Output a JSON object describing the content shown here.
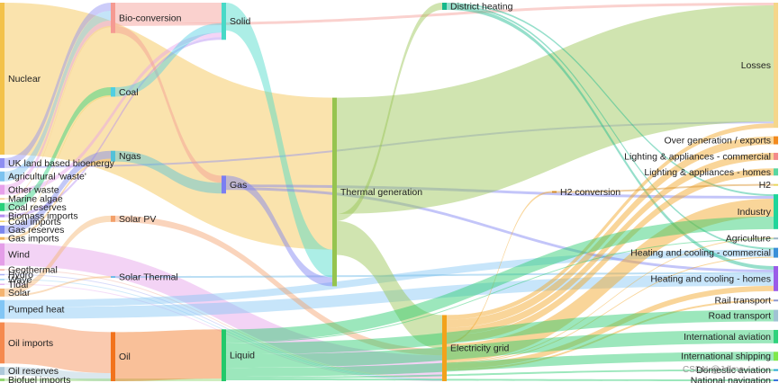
{
  "watermark": "CSDN @Jdime",
  "chart_data": {
    "type": "sankey",
    "nodes": [
      {
        "id": "nuclear",
        "label": "Nuclear",
        "color": "#f3c24a",
        "column": 0,
        "value": 17
      },
      {
        "id": "uk_bio",
        "label": "UK land based bioenergy",
        "color": "#8e8ef2",
        "column": 0,
        "value": 1.1
      },
      {
        "id": "agri_waste",
        "label": "Agricultural 'waste'",
        "color": "#7cc3ef",
        "column": 0,
        "value": 1.1
      },
      {
        "id": "other_waste",
        "label": "Other waste",
        "color": "#e7a0ea",
        "column": 0,
        "value": 1.1
      },
      {
        "id": "marine_algae",
        "label": "Marine algae",
        "color": "#f5c88a",
        "column": 0,
        "value": 0.15
      },
      {
        "id": "coal_reserves",
        "label": "Coal reserves",
        "color": "#27d07a",
        "column": 0,
        "value": 0.9
      },
      {
        "id": "biomass_imports",
        "label": "Biomass imports",
        "color": "#b48cf2",
        "column": 0,
        "value": 0.3
      },
      {
        "id": "coal_imports",
        "label": "Coal imports",
        "color": "#f1d36a",
        "column": 0,
        "value": 0.15
      },
      {
        "id": "gas_reserves",
        "label": "Gas reserves",
        "color": "#7b86ee",
        "column": 0,
        "value": 0.9
      },
      {
        "id": "gas_imports",
        "label": "Gas imports",
        "color": "#f2b35a",
        "column": 0,
        "value": 0.3
      },
      {
        "id": "wind",
        "label": "Wind",
        "color": "#e49ee8",
        "column": 0,
        "value": 2.5
      },
      {
        "id": "geothermal",
        "label": "Geothermal",
        "color": "#f2b2a2",
        "column": 0,
        "value": 0.1
      },
      {
        "id": "hydro",
        "label": "Hydro",
        "color": "#a8b0f5",
        "column": 0,
        "value": 0.1
      },
      {
        "id": "wave",
        "label": "Wave",
        "color": "#97d1f3",
        "column": 0,
        "value": 0.1
      },
      {
        "id": "tidal",
        "label": "Tidal",
        "color": "#e6b3ef",
        "column": 0,
        "value": 0.1
      },
      {
        "id": "solar",
        "label": "Solar",
        "color": "#f4b36f",
        "column": 0,
        "value": 0.9
      },
      {
        "id": "pumped_heat",
        "label": "Pumped heat",
        "color": "#82c6f5",
        "column": 0,
        "value": 2.1
      },
      {
        "id": "oil_imports",
        "label": "Oil imports",
        "color": "#f5894e",
        "column": 0,
        "value": 4.6
      },
      {
        "id": "oil_reserves",
        "label": "Oil reserves",
        "color": "#aec9da",
        "column": 0,
        "value": 0.9
      },
      {
        "id": "biofuel_imports",
        "label": "Biofuel imports",
        "color": "#92d671",
        "column": 0,
        "value": 0.3
      },
      {
        "id": "bio_conversion",
        "label": "Bio-conversion",
        "color": "#f59a92",
        "column": 1,
        "value": 3.4
      },
      {
        "id": "coal",
        "label": "Coal",
        "color": "#4fcfe2",
        "column": 1,
        "value": 1.05
      },
      {
        "id": "ngas",
        "label": "Ngas",
        "color": "#53c1d8",
        "column": 1,
        "value": 1.2
      },
      {
        "id": "solar_pv",
        "label": "Solar PV",
        "color": "#f3a06a",
        "column": 1,
        "value": 0.7
      },
      {
        "id": "solar_thermal",
        "label": "Solar Thermal",
        "color": "#6ab9e6",
        "column": 1,
        "value": 0.2
      },
      {
        "id": "oil",
        "label": "Oil",
        "color": "#f2731c",
        "column": 1,
        "value": 5.5
      },
      {
        "id": "solid",
        "label": "Solid",
        "color": "#48d9c7",
        "column": 2,
        "value": 3.1
      },
      {
        "id": "gas",
        "label": "Gas",
        "color": "#7b7ef2",
        "column": 2,
        "value": 1.6
      },
      {
        "id": "liquid",
        "label": "Liquid",
        "color": "#23c96a",
        "column": 2,
        "value": 5.8
      },
      {
        "id": "thermal_gen",
        "label": "Thermal generation",
        "color": "#96c44f",
        "column": 3,
        "value": 20
      },
      {
        "id": "district_heating",
        "label": "District heating",
        "color": "#16b88b",
        "column": 4,
        "value": 0.8
      },
      {
        "id": "electricity_grid",
        "label": "Electricity grid",
        "color": "#f2a21c",
        "column": 4,
        "value": 7.4
      },
      {
        "id": "h2_conversion",
        "label": "H2 conversion",
        "color": "#d88e26",
        "column": 5,
        "value": 0.2
      },
      {
        "id": "losses",
        "label": "Losses",
        "color": "#f5d68a",
        "column": 6,
        "value": 14
      },
      {
        "id": "over_gen",
        "label": "Over generation / exports",
        "color": "#f28a1e",
        "column": 6,
        "value": 0.9
      },
      {
        "id": "lighting_comm",
        "label": "Lighting & appliances - commercial",
        "color": "#f38a8a",
        "column": 6,
        "value": 0.8
      },
      {
        "id": "lighting_homes",
        "label": "Lighting & appliances - homes",
        "color": "#59d6a0",
        "column": 6,
        "value": 0.8
      },
      {
        "id": "h2",
        "label": "H2",
        "color": "#e9d65c",
        "column": 6,
        "value": 0.2
      },
      {
        "id": "industry",
        "label": "Industry",
        "color": "#1fd59a",
        "column": 6,
        "value": 3.9
      },
      {
        "id": "agriculture",
        "label": "Agriculture",
        "color": "#9ab4c4",
        "column": 6,
        "value": 0.2
      },
      {
        "id": "heat_comm",
        "label": "Heating and cooling - commercial",
        "color": "#3a8fd8",
        "column": 6,
        "value": 1.1
      },
      {
        "id": "heat_homes",
        "label": "Heating and cooling - homes",
        "color": "#9a5be8",
        "column": 6,
        "value": 2.6
      },
      {
        "id": "rail",
        "label": "Rail transport",
        "color": "#8e98cf",
        "column": 6,
        "value": 0.2
      },
      {
        "id": "road",
        "label": "Road transport",
        "color": "#9fc3d3",
        "column": 6,
        "value": 1.3
      },
      {
        "id": "intl_aviation",
        "label": "International aviation",
        "color": "#2fd27c",
        "column": 6,
        "value": 1.5
      },
      {
        "id": "intl_shipping",
        "label": "International shipping",
        "color": "#7ee84a",
        "column": 6,
        "value": 1.0
      },
      {
        "id": "domestic_aviation",
        "label": "Domestic aviation",
        "color": "#2aa8d4",
        "column": 6,
        "value": 0.2
      },
      {
        "id": "national_navigation",
        "label": "National navigation",
        "color": "#3a70dc",
        "column": 6,
        "value": 0.2
      }
    ],
    "links": [
      {
        "source": "nuclear",
        "target": "thermal_gen",
        "value": 17
      },
      {
        "source": "uk_bio",
        "target": "bio_conversion",
        "value": 0.9
      },
      {
        "source": "uk_bio",
        "target": "losses",
        "value": 0.2
      },
      {
        "source": "agri_waste",
        "target": "bio_conversion",
        "value": 1.1
      },
      {
        "source": "other_waste",
        "target": "bio_conversion",
        "value": 0.6
      },
      {
        "source": "other_waste",
        "target": "solid",
        "value": 0.5
      },
      {
        "source": "marine_algae",
        "target": "bio_conversion",
        "value": 0.15
      },
      {
        "source": "coal_reserves",
        "target": "coal",
        "value": 0.9
      },
      {
        "source": "biomass_imports",
        "target": "solid",
        "value": 0.3
      },
      {
        "source": "coal_imports",
        "target": "coal",
        "value": 0.15
      },
      {
        "source": "gas_reserves",
        "target": "ngas",
        "value": 0.9
      },
      {
        "source": "gas_imports",
        "target": "ngas",
        "value": 0.3
      },
      {
        "source": "wind",
        "target": "electricity_grid",
        "value": 2.5
      },
      {
        "source": "geothermal",
        "target": "electricity_grid",
        "value": 0.1
      },
      {
        "source": "hydro",
        "target": "electricity_grid",
        "value": 0.1
      },
      {
        "source": "wave",
        "target": "electricity_grid",
        "value": 0.1
      },
      {
        "source": "tidal",
        "target": "electricity_grid",
        "value": 0.1
      },
      {
        "source": "solar",
        "target": "solar_pv",
        "value": 0.7
      },
      {
        "source": "solar",
        "target": "solar_thermal",
        "value": 0.2
      },
      {
        "source": "pumped_heat",
        "target": "heat_homes",
        "value": 1.3
      },
      {
        "source": "pumped_heat",
        "target": "heat_comm",
        "value": 0.8
      },
      {
        "source": "oil_imports",
        "target": "oil",
        "value": 4.6
      },
      {
        "source": "oil_reserves",
        "target": "oil",
        "value": 0.9
      },
      {
        "source": "biofuel_imports",
        "target": "liquid",
        "value": 0.3
      },
      {
        "source": "bio_conversion",
        "target": "solid",
        "value": 2.3
      },
      {
        "source": "bio_conversion",
        "target": "gas",
        "value": 0.8
      },
      {
        "source": "bio_conversion",
        "target": "losses",
        "value": 0.3
      },
      {
        "source": "coal",
        "target": "solid",
        "value": 1.05
      },
      {
        "source": "ngas",
        "target": "gas",
        "value": 1.2
      },
      {
        "source": "solar_pv",
        "target": "electricity_grid",
        "value": 0.7
      },
      {
        "source": "solar_thermal",
        "target": "heat_homes",
        "value": 0.2
      },
      {
        "source": "oil",
        "target": "liquid",
        "value": 5.5
      },
      {
        "source": "solid",
        "target": "thermal_gen",
        "value": 3.1
      },
      {
        "source": "gas",
        "target": "thermal_gen",
        "value": 1.0
      },
      {
        "source": "gas",
        "target": "heat_homes",
        "value": 0.3
      },
      {
        "source": "gas",
        "target": "industry",
        "value": 0.3
      },
      {
        "source": "thermal_gen",
        "target": "losses",
        "value": 13
      },
      {
        "source": "thermal_gen",
        "target": "electricity_grid",
        "value": 3.8
      },
      {
        "source": "thermal_gen",
        "target": "district_heating",
        "value": 0.8
      },
      {
        "source": "district_heating",
        "target": "heat_homes",
        "value": 0.4
      },
      {
        "source": "district_heating",
        "target": "heat_comm",
        "value": 0.2
      },
      {
        "source": "district_heating",
        "target": "industry",
        "value": 0.2
      },
      {
        "source": "electricity_grid",
        "target": "over_gen",
        "value": 0.9
      },
      {
        "source": "electricity_grid",
        "target": "lighting_comm",
        "value": 0.8
      },
      {
        "source": "electricity_grid",
        "target": "lighting_homes",
        "value": 0.8
      },
      {
        "source": "electricity_grid",
        "target": "h2_conversion",
        "value": 0.2
      },
      {
        "source": "electricity_grid",
        "target": "industry",
        "value": 2.0
      },
      {
        "source": "electricity_grid",
        "target": "heat_homes",
        "value": 0.6
      },
      {
        "source": "electricity_grid",
        "target": "heat_comm",
        "value": 0.1
      },
      {
        "source": "electricity_grid",
        "target": "rail",
        "value": 0.2
      },
      {
        "source": "electricity_grid",
        "target": "agriculture",
        "value": 0.1
      },
      {
        "source": "electricity_grid",
        "target": "losses",
        "value": 0.5
      },
      {
        "source": "h2_conversion",
        "target": "h2",
        "value": 0.2
      },
      {
        "source": "liquid",
        "target": "industry",
        "value": 1.4
      },
      {
        "source": "liquid",
        "target": "road",
        "value": 1.3
      },
      {
        "source": "liquid",
        "target": "intl_aviation",
        "value": 1.5
      },
      {
        "source": "liquid",
        "target": "intl_shipping",
        "value": 1.0
      },
      {
        "source": "liquid",
        "target": "domestic_aviation",
        "value": 0.2
      },
      {
        "source": "liquid",
        "target": "national_navigation",
        "value": 0.2
      },
      {
        "source": "liquid",
        "target": "agriculture",
        "value": 0.1
      }
    ]
  }
}
